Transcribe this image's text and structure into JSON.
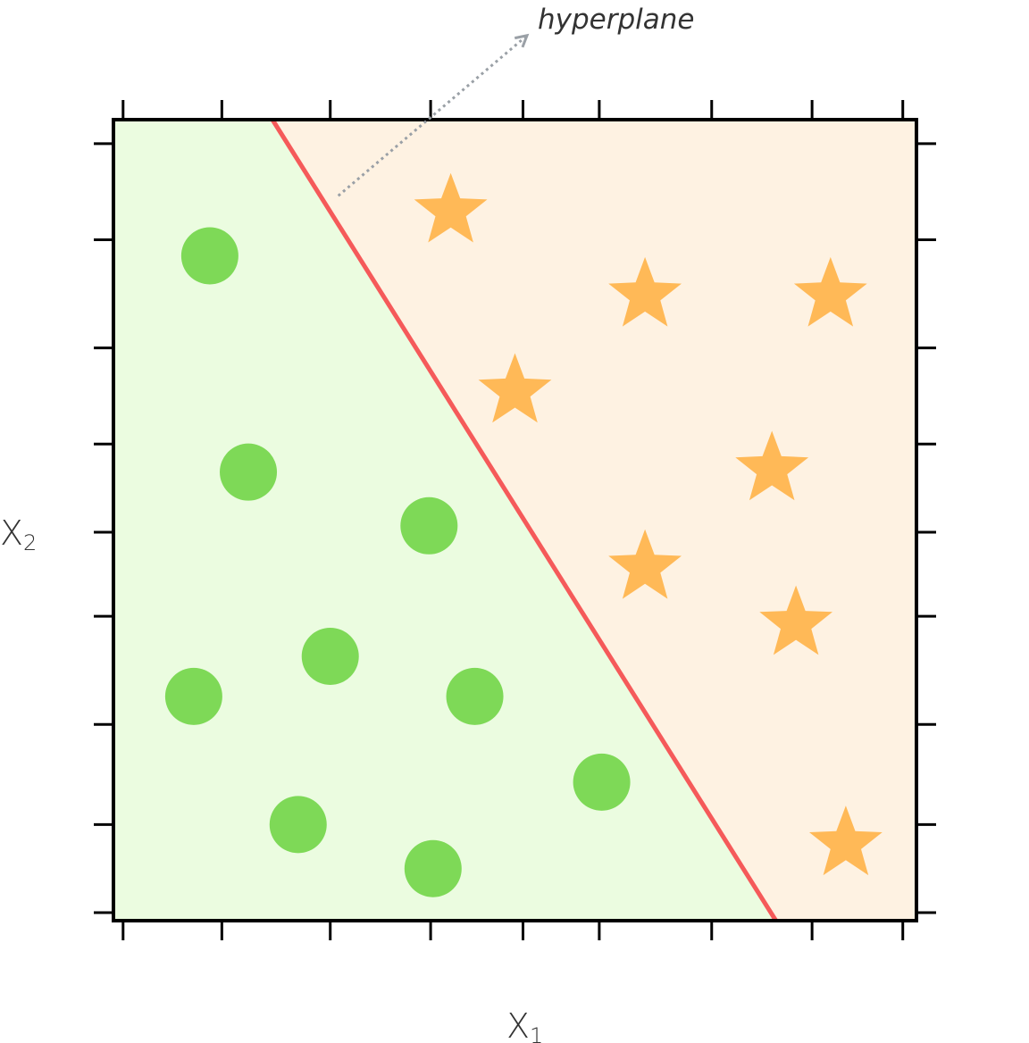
{
  "chart_data": {
    "type": "scatter",
    "title": "",
    "xlabel": "X",
    "xlabel_sub": "1",
    "ylabel": "X",
    "ylabel_sub": "2",
    "xlim": [
      0,
      10
    ],
    "ylim": [
      0,
      10
    ],
    "grid": false,
    "x_ticks": [
      0.12,
      1.35,
      2.7,
      3.95,
      5.1,
      6.05,
      7.45,
      8.7,
      9.83
    ],
    "y_ticks": [
      0.1,
      1.2,
      2.45,
      3.8,
      4.85,
      5.95,
      7.15,
      8.5,
      9.7
    ],
    "annotation": {
      "text": "hyperplane",
      "from": [
        2.8,
        9.05
      ],
      "to": [
        5.15,
        11.05
      ]
    },
    "hyperplane": {
      "from": [
        1.98,
        10.0
      ],
      "to": [
        8.25,
        0.0
      ]
    },
    "regions": [
      {
        "side": "below",
        "color": "#ebfce0"
      },
      {
        "side": "above",
        "color": "#fef2e2"
      }
    ],
    "series": [
      {
        "marker": "circle",
        "color": "#7ed957",
        "points": [
          [
            1.2,
            8.3
          ],
          [
            1.68,
            5.6
          ],
          [
            3.93,
            4.93
          ],
          [
            2.7,
            3.3
          ],
          [
            1.0,
            2.8
          ],
          [
            4.5,
            2.8
          ],
          [
            6.08,
            1.73
          ],
          [
            2.3,
            1.2
          ],
          [
            3.98,
            0.65
          ]
        ]
      },
      {
        "marker": "star",
        "color": "#ffb957",
        "points": [
          [
            4.2,
            8.9
          ],
          [
            6.62,
            7.85
          ],
          [
            8.93,
            7.85
          ],
          [
            5.0,
            6.65
          ],
          [
            8.2,
            5.68
          ],
          [
            6.62,
            4.45
          ],
          [
            8.5,
            3.75
          ],
          [
            9.12,
            1.0
          ]
        ]
      }
    ],
    "colors": {
      "hyperplane": "#f55a5a",
      "annotation_arrow": "#9aa0a6",
      "frame": "#000000"
    }
  }
}
